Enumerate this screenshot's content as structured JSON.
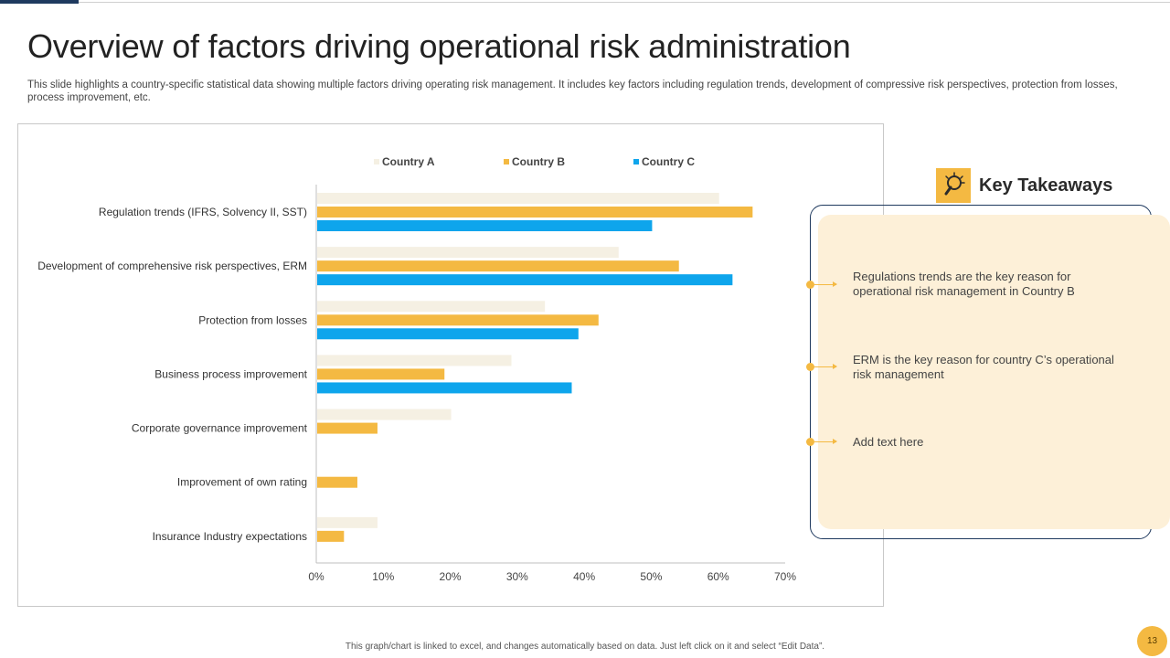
{
  "title": "Overview of factors driving operational risk administration",
  "subtitle": "This slide highlights a country-specific statistical data showing multiple factors driving operating risk management. It includes key factors including regulation trends, development of compressive risk perspectives, protection from losses, process improvement, etc.",
  "chart_data": {
    "type": "bar",
    "orientation": "horizontal",
    "categories": [
      "Regulation trends (IFRS, Solvency II, SST)",
      "Development of comprehensive risk perspectives, ERM",
      "Protection from losses",
      "Business process improvement",
      "Corporate governance improvement",
      "Improvement of own rating",
      "Insurance Industry expectations"
    ],
    "series": [
      {
        "name": "Country A",
        "color": "#f5f0e3",
        "values": [
          60,
          45,
          34,
          29,
          20,
          0,
          9
        ]
      },
      {
        "name": "Country B",
        "color": "#f4b942",
        "values": [
          65,
          54,
          42,
          19,
          9,
          6,
          4
        ]
      },
      {
        "name": "Country C",
        "color": "#0ea5ec",
        "values": [
          50,
          62,
          39,
          38,
          0,
          0,
          0
        ]
      }
    ],
    "xlim": [
      0,
      70
    ],
    "xticks": [
      "0%",
      "10%",
      "20%",
      "30%",
      "40%",
      "50%",
      "60%",
      "70%"
    ],
    "legend_position": "top"
  },
  "key_takeaways": {
    "title": "Key Takeaways",
    "items": [
      "Regulations trends are the key reason for operational risk management in Country B",
      "ERM is the key reason for country C’s operational risk management",
      "Add text here"
    ]
  },
  "footnote": "This graph/chart is linked to excel, and changes automatically based on data. Just left click on it and select “Edit Data”.",
  "page_number": "13"
}
